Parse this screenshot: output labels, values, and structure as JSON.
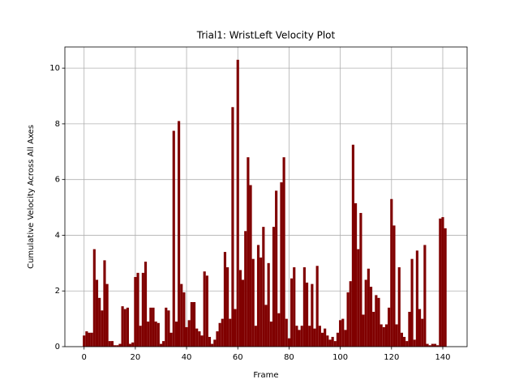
{
  "chart_data": {
    "type": "bar",
    "title": "Trial1: WristLeft Velocity Plot",
    "xlabel": "Frame",
    "ylabel": "Cumulative Velocity Across All Axes",
    "color": "#800000",
    "grid": true,
    "xlim": [
      -7.5,
      149.5
    ],
    "ylim": [
      0,
      10.76
    ],
    "xticks": [
      0,
      20,
      40,
      60,
      80,
      100,
      120,
      140
    ],
    "yticks": [
      0,
      2,
      4,
      6,
      8,
      10
    ],
    "x": [
      0,
      1,
      2,
      3,
      4,
      5,
      6,
      7,
      8,
      9,
      10,
      11,
      12,
      13,
      14,
      15,
      16,
      17,
      18,
      19,
      20,
      21,
      22,
      23,
      24,
      25,
      26,
      27,
      28,
      29,
      30,
      31,
      32,
      33,
      34,
      35,
      36,
      37,
      38,
      39,
      40,
      41,
      42,
      43,
      44,
      45,
      46,
      47,
      48,
      49,
      50,
      51,
      52,
      53,
      54,
      55,
      56,
      57,
      58,
      59,
      60,
      61,
      62,
      63,
      64,
      65,
      66,
      67,
      68,
      69,
      70,
      71,
      72,
      73,
      74,
      75,
      76,
      77,
      78,
      79,
      80,
      81,
      82,
      83,
      84,
      85,
      86,
      87,
      88,
      89,
      90,
      91,
      92,
      93,
      94,
      95,
      96,
      97,
      98,
      99,
      100,
      101,
      102,
      103,
      104,
      105,
      106,
      107,
      108,
      109,
      110,
      111,
      112,
      113,
      114,
      115,
      116,
      117,
      118,
      119,
      120,
      121,
      122,
      123,
      124,
      125,
      126,
      127,
      128,
      129,
      130,
      131,
      132,
      133,
      134,
      135,
      136,
      137,
      138,
      139,
      140,
      141
    ],
    "values": [
      0.4,
      0.55,
      0.5,
      0.5,
      3.5,
      2.4,
      1.75,
      1.3,
      3.1,
      2.25,
      0.2,
      0.2,
      0.05,
      0.05,
      0.1,
      1.45,
      1.35,
      1.4,
      0.1,
      0.15,
      2.5,
      2.65,
      0.75,
      2.65,
      3.05,
      0.9,
      1.4,
      1.4,
      0.9,
      0.85,
      0.1,
      0.2,
      1.4,
      1.3,
      0.5,
      7.75,
      0.9,
      8.1,
      2.25,
      1.95,
      0.7,
      0.95,
      1.6,
      1.6,
      0.65,
      0.55,
      0.4,
      2.7,
      2.55,
      0.35,
      0.1,
      0.25,
      0.55,
      0.85,
      1.0,
      3.4,
      2.85,
      1.0,
      8.6,
      1.35,
      10.3,
      2.75,
      2.4,
      4.15,
      6.8,
      5.8,
      3.15,
      0.75,
      3.65,
      3.2,
      4.3,
      1.5,
      3.0,
      0.9,
      4.3,
      5.6,
      1.2,
      5.9,
      6.8,
      1.0,
      0.3,
      2.45,
      2.85,
      0.75,
      0.6,
      0.75,
      2.85,
      2.3,
      0.75,
      2.25,
      0.65,
      2.9,
      0.75,
      0.5,
      0.65,
      0.4,
      0.25,
      0.35,
      0.2,
      0.5,
      0.95,
      1.0,
      0.6,
      1.95,
      2.35,
      7.25,
      5.15,
      3.5,
      4.8,
      1.15,
      2.4,
      2.8,
      2.15,
      1.25,
      1.85,
      1.75,
      0.8,
      0.7,
      0.8,
      1.4,
      5.3,
      4.35,
      0.8,
      2.85,
      0.5,
      0.35,
      0.2,
      1.25,
      3.15,
      0.25,
      3.45,
      1.35,
      1.0,
      3.65,
      0.1,
      0.05,
      0.1,
      0.1,
      0.05,
      4.6,
      4.65,
      4.25
    ]
  }
}
